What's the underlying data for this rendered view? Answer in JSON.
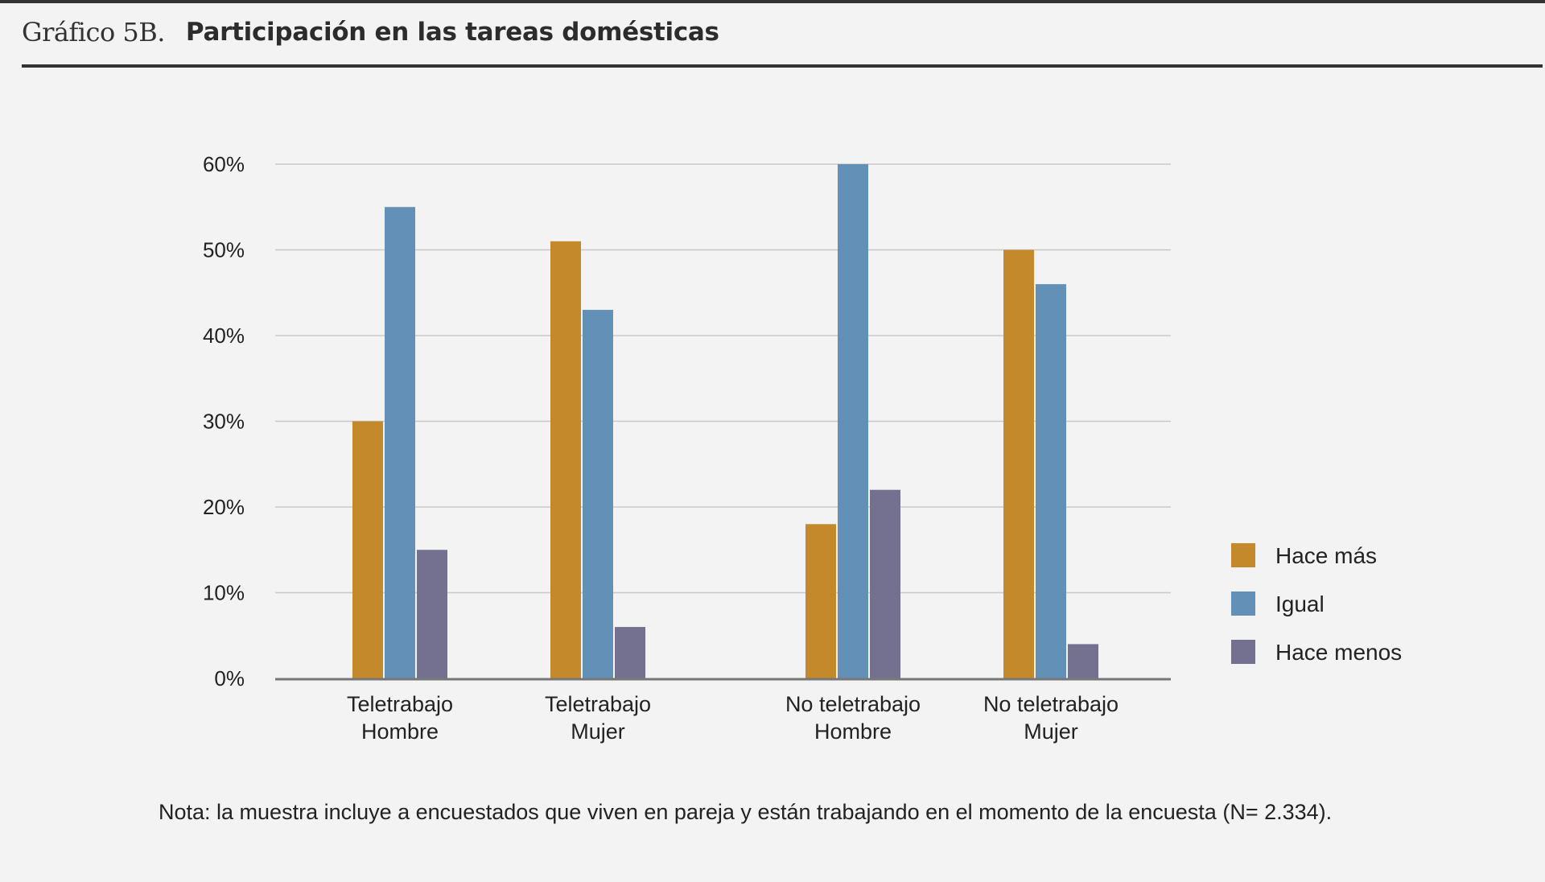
{
  "header": {
    "figure_label": "Gráfico 5B.",
    "title": "Participación en las tareas domésticas"
  },
  "note": "Nota: la muestra incluye a encuestados que viven en pareja y están trabajando en el momento de la encuesta (N= 2.334).",
  "chart_data": {
    "type": "bar",
    "title": "Participación en las tareas domésticas",
    "categories": [
      [
        "Teletrabajo",
        "Hombre"
      ],
      [
        "Teletrabajo",
        "Mujer"
      ],
      [
        "No teletrabajo",
        "Hombre"
      ],
      [
        "No teletrabajo",
        "Mujer"
      ]
    ],
    "series": [
      {
        "name": "Hace más",
        "color": "#c4892a",
        "values": [
          30,
          51,
          18,
          50
        ]
      },
      {
        "name": "Igual",
        "color": "#6290b7",
        "values": [
          55,
          43,
          60,
          46
        ]
      },
      {
        "name": "Hace menos",
        "color": "#73718f",
        "values": [
          15,
          6,
          22,
          4
        ]
      }
    ],
    "xlabel": "",
    "ylabel": "",
    "ylim": [
      0,
      60
    ],
    "yticks": [
      {
        "value": 0,
        "label": "0%"
      },
      {
        "value": 10,
        "label": "10%"
      },
      {
        "value": 20,
        "label": "20%"
      },
      {
        "value": 30,
        "label": "30%"
      },
      {
        "value": 40,
        "label": "40%"
      },
      {
        "value": 50,
        "label": "50%"
      },
      {
        "value": 60,
        "label": "60%"
      }
    ],
    "grid": true,
    "legend_position": "right"
  },
  "colors": {
    "gridline": "#c9c9c9",
    "axis": "#777777",
    "text": "#222222"
  }
}
